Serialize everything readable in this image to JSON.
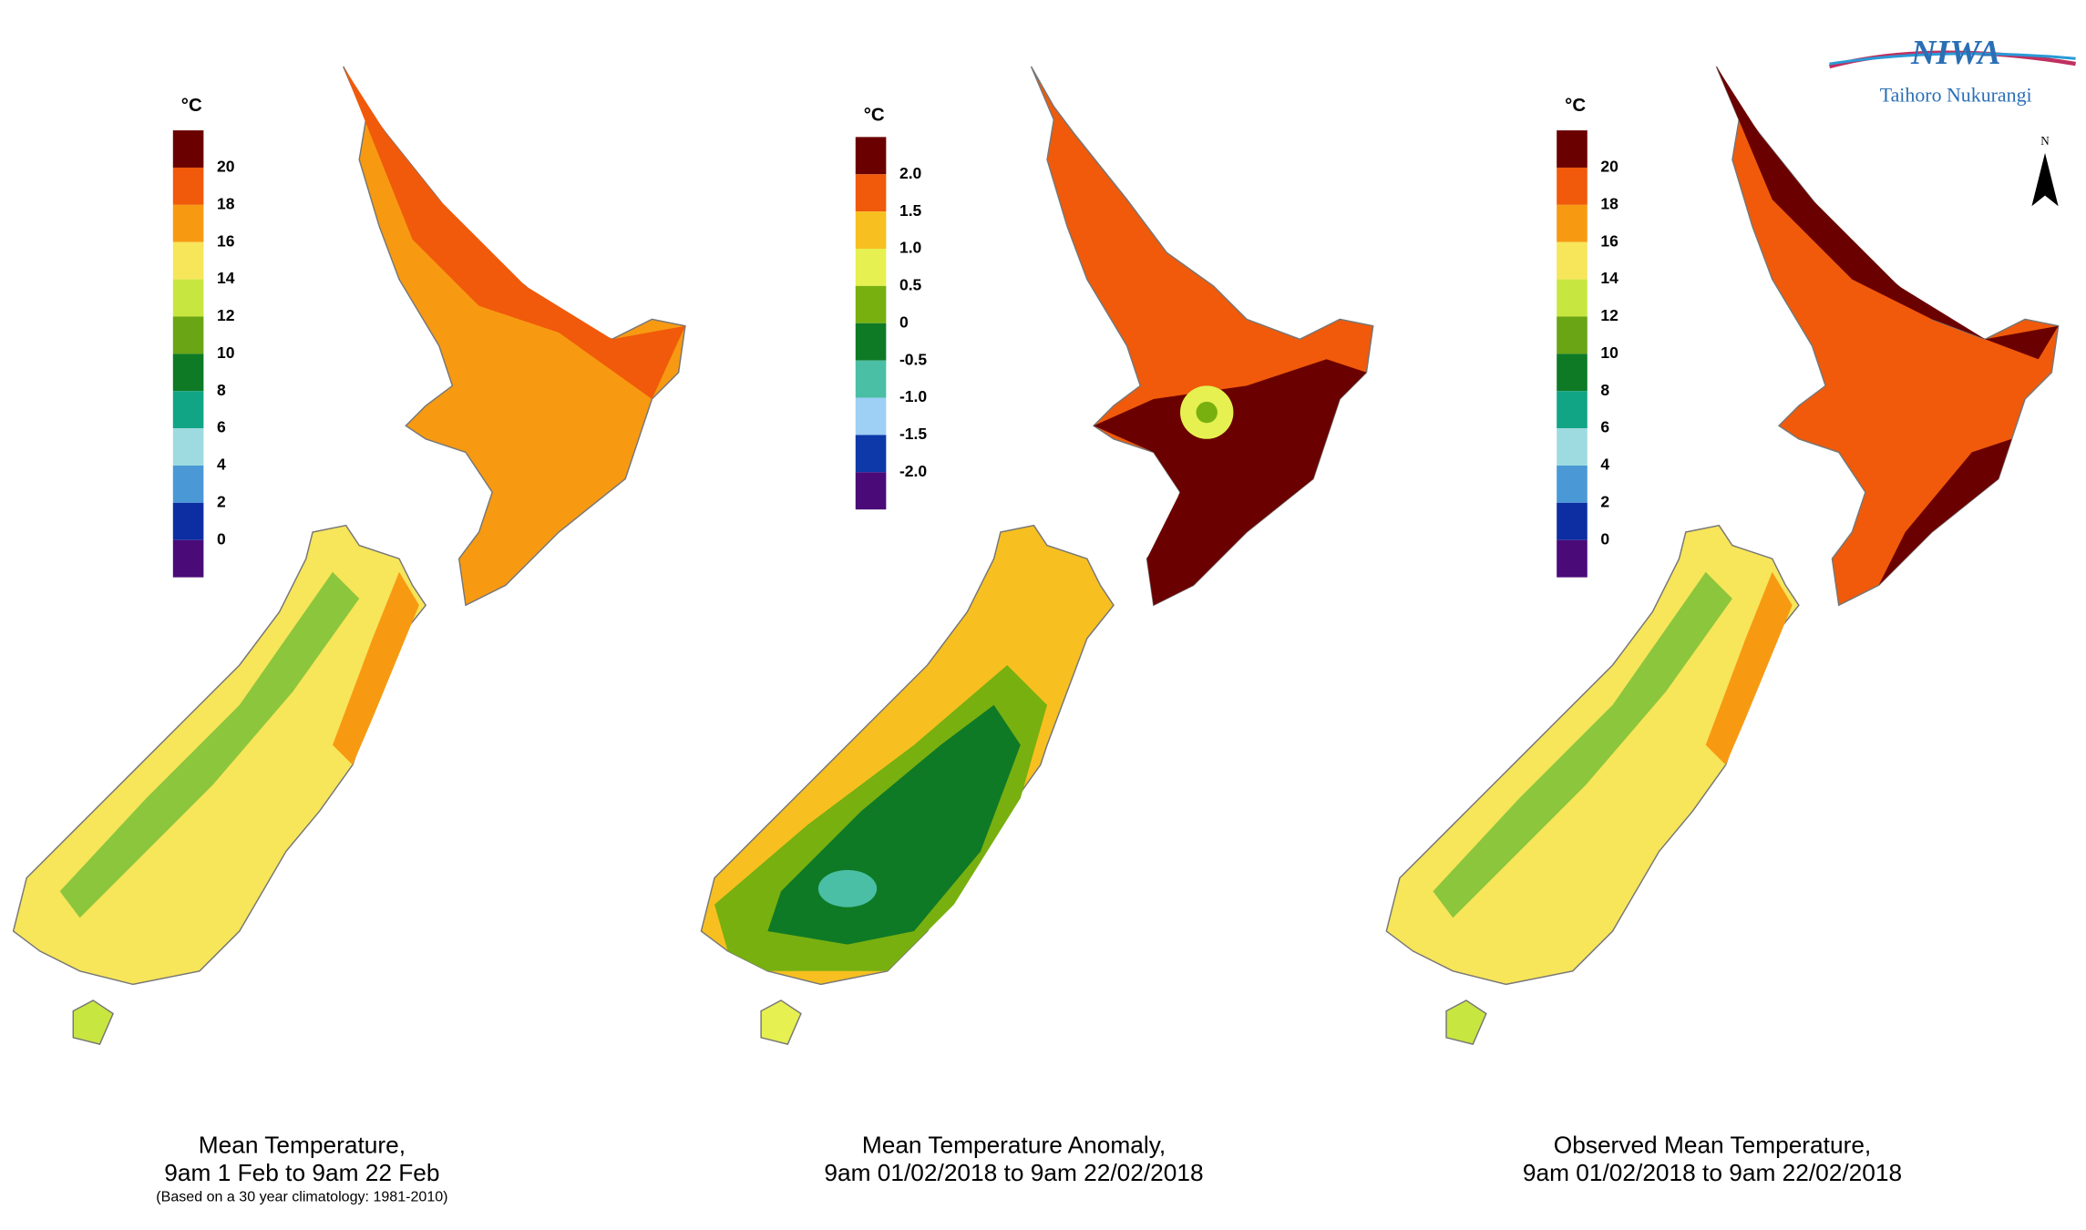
{
  "panels": [
    {
      "legend": {
        "unit": "°C",
        "labels": [
          "20",
          "18",
          "16",
          "14",
          "12",
          "10",
          "8",
          "6",
          "4",
          "2",
          "0"
        ],
        "colors": [
          "#6b0000",
          "#f05a0a",
          "#f79a12",
          "#f7e55a",
          "#c8e640",
          "#6aa515",
          "#0e7a26",
          "#12a585",
          "#9edbe0",
          "#4a98d6",
          "#0d2ea3",
          "#4a0a78"
        ]
      },
      "caption": [
        "Mean Temperature,",
        "9am 1 Feb to 9am 22 Feb",
        "(Based on a 30 year climatology: 1981-2010)"
      ]
    },
    {
      "legend": {
        "unit": "°C",
        "labels": [
          "2.0",
          "1.5",
          "1.0",
          "0.5",
          "0",
          "-0.5",
          "-1.0",
          "-1.5",
          "-2.0"
        ],
        "colors": [
          "#6b0000",
          "#f05a0a",
          "#f7c020",
          "#e6f050",
          "#78b010",
          "#0e7a26",
          "#4abfa5",
          "#9ecff5",
          "#0d3aa8",
          "#4a0a78"
        ]
      },
      "caption": [
        "Mean Temperature Anomaly,",
        "9am 01/02/2018 to 9am 22/02/2018"
      ]
    },
    {
      "legend": {
        "unit": "°C",
        "labels": [
          "20",
          "18",
          "16",
          "14",
          "12",
          "10",
          "8",
          "6",
          "4",
          "2",
          "0"
        ],
        "colors": [
          "#6b0000",
          "#f05a0a",
          "#f79a12",
          "#f7e55a",
          "#c8e640",
          "#6aa515",
          "#0e7a26",
          "#12a585",
          "#9edbe0",
          "#4a98d6",
          "#0d2ea3",
          "#4a0a78"
        ]
      },
      "caption": [
        "Observed Mean Temperature,",
        "9am 01/02/2018 to 9am 22/02/2018"
      ]
    }
  ],
  "logo": {
    "name": "NIWA",
    "subtitle": "Taihoro Nukurangi"
  },
  "north": "N"
}
